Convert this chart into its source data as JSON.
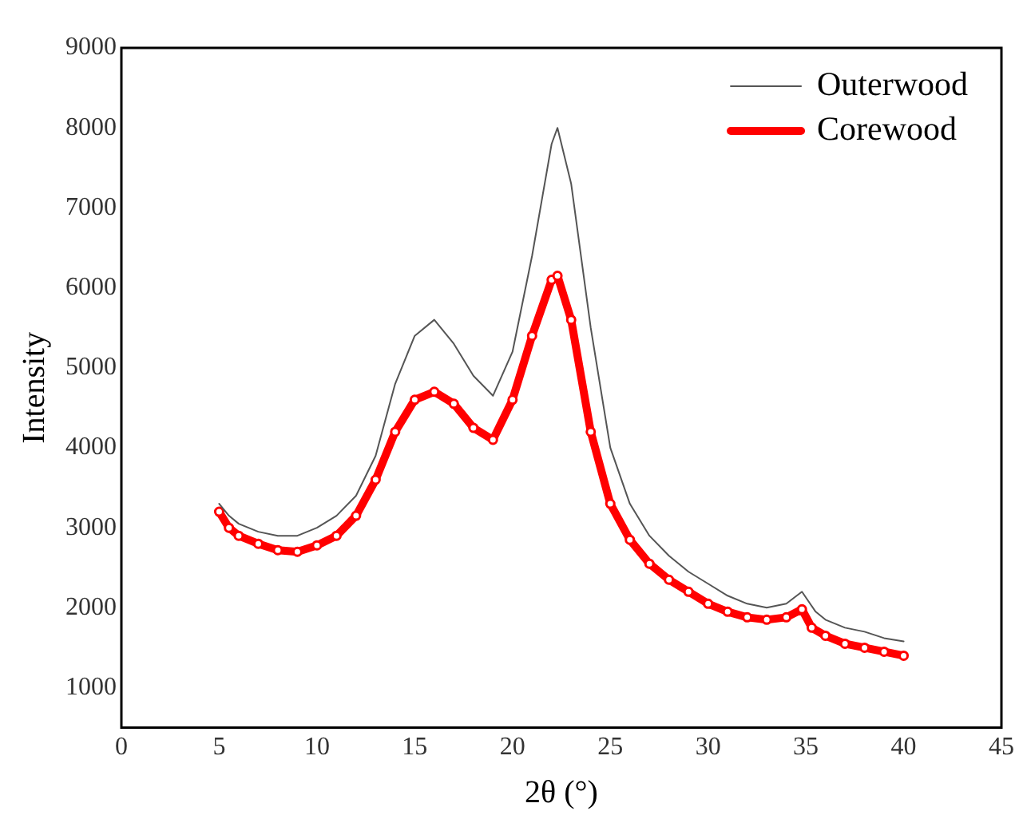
{
  "chart_data": {
    "type": "line",
    "xlabel": "2θ (°)",
    "ylabel": "Intensity",
    "xlim": [
      0,
      45
    ],
    "xticks": [
      0,
      5,
      10,
      15,
      20,
      25,
      30,
      35,
      40,
      45
    ],
    "ylim": [
      500,
      9000
    ],
    "yticks": [
      1000,
      2000,
      3000,
      4000,
      5000,
      6000,
      7000,
      8000,
      9000
    ],
    "grid": false,
    "legend": "top right",
    "series": [
      {
        "name": "Outerwood",
        "color": "#555555",
        "marker": "none",
        "x": [
          5,
          5.5,
          6,
          7,
          8,
          9,
          10,
          11,
          12,
          13,
          14,
          15,
          16,
          17,
          18,
          19,
          20,
          21,
          22,
          22.3,
          23,
          24,
          25,
          26,
          27,
          28,
          29,
          30,
          31,
          32,
          33,
          34,
          34.8,
          35.5,
          36,
          37,
          38,
          39,
          40
        ],
        "values": [
          3300,
          3150,
          3050,
          2950,
          2900,
          2900,
          3000,
          3150,
          3400,
          3900,
          4800,
          5400,
          5600,
          5300,
          4900,
          4650,
          5200,
          6400,
          7800,
          8000,
          7300,
          5500,
          4000,
          3300,
          2900,
          2650,
          2450,
          2300,
          2150,
          2050,
          2000,
          2050,
          2200,
          1950,
          1850,
          1750,
          1700,
          1620,
          1580
        ]
      },
      {
        "name": "Corewood",
        "color": "#ff0000",
        "marker": "circle",
        "x": [
          5,
          5.5,
          6,
          7,
          8,
          9,
          10,
          11,
          12,
          13,
          14,
          15,
          16,
          17,
          18,
          19,
          20,
          21,
          22,
          22.3,
          23,
          24,
          25,
          26,
          27,
          28,
          29,
          30,
          31,
          32,
          33,
          34,
          34.8,
          35.3,
          36,
          37,
          38,
          39,
          40
        ],
        "values": [
          3200,
          3000,
          2900,
          2800,
          2720,
          2700,
          2780,
          2900,
          3150,
          3600,
          4200,
          4600,
          4700,
          4550,
          4250,
          4100,
          4600,
          5400,
          6100,
          6150,
          5600,
          4200,
          3300,
          2850,
          2550,
          2350,
          2200,
          2050,
          1950,
          1880,
          1850,
          1880,
          1980,
          1750,
          1650,
          1550,
          1500,
          1450,
          1400
        ]
      }
    ]
  }
}
